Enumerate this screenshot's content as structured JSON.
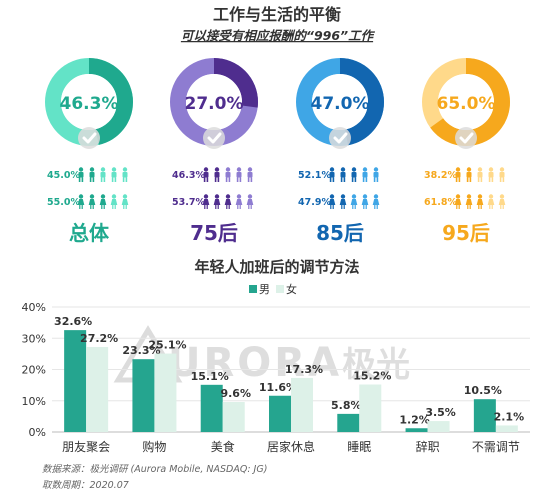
{
  "header": {
    "title": "工作与生活的平衡",
    "subtitle": "可以接受有相应报酬的“996”工作"
  },
  "colors": {
    "male_bar": "#25A58F",
    "female_bar": "#DDF1E8",
    "text_dark": "#333333",
    "watermark": "#d8d8d8"
  },
  "watermark": {
    "text": "URORA",
    "cn": "极光"
  },
  "groups": [
    {
      "label": "总体",
      "rate": "46.3%",
      "rate_value": 46.3,
      "male": "45.0%",
      "female": "55.0%",
      "ring_color": "#1FA98E",
      "ring_light": "#63E3C7",
      "text_color": "#1FA98E"
    },
    {
      "label": "75后",
      "rate": "27.0%",
      "rate_value": 27.0,
      "male": "46.3%",
      "female": "53.7%",
      "ring_color": "#4F2D8E",
      "ring_light": "#8E7CD1",
      "text_color": "#4F2D8E"
    },
    {
      "label": "85后",
      "rate": "47.0%",
      "rate_value": 47.0,
      "male": "52.1%",
      "female": "47.9%",
      "ring_color": "#1266B0",
      "ring_light": "#3FA6E6",
      "text_color": "#1266B0"
    },
    {
      "label": "95后",
      "rate": "65.0%",
      "rate_value": 65.0,
      "male": "38.2%",
      "female": "61.8%",
      "ring_color": "#F6A81D",
      "ring_light": "#FFD98A",
      "text_color": "#F6A81D"
    }
  ],
  "chart_data": {
    "type": "bar",
    "title": "年轻人加班后的调节方法",
    "categories": [
      "朋友聚会",
      "购物",
      "美食",
      "居家休息",
      "睡眠",
      "辞职",
      "不需调节"
    ],
    "series": [
      {
        "name": "男",
        "values": [
          32.6,
          23.3,
          15.1,
          11.6,
          5.8,
          1.2,
          10.5
        ],
        "labels": [
          "32.6%",
          "23.3%",
          "15.1%",
          "11.6%",
          "5.8%",
          "1.2%",
          "10.5%"
        ]
      },
      {
        "name": "女",
        "values": [
          27.2,
          25.1,
          9.6,
          17.3,
          15.2,
          3.5,
          2.1
        ],
        "labels": [
          "27.2%",
          "25.1%",
          "9.6%",
          "17.3%",
          "15.2%",
          "3.5%",
          "2.1%"
        ]
      }
    ],
    "y_ticks": [
      "0%",
      "10%",
      "20%",
      "30%",
      "40%"
    ],
    "ylim": [
      0,
      40
    ],
    "legend_position": "top-center"
  },
  "footer": {
    "source": "数据来源：极光调研 (Aurora Mobile, NASDAQ: JG)",
    "period": "取数周期：2020.07"
  }
}
